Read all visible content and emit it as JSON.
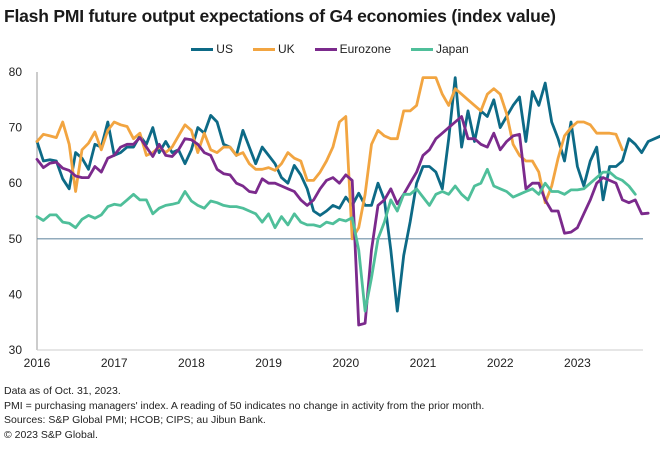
{
  "chart_data": {
    "type": "line",
    "title": "Flash PMI future output expectations of G4 economies (index value)",
    "xlabel": "",
    "ylabel": "",
    "ylim": [
      30,
      80
    ],
    "yticks": [
      "30",
      "40",
      "50",
      "60",
      "70",
      "80"
    ],
    "reference_line": 50,
    "xstart": "2016-01",
    "xticks": [
      "2016",
      "2017",
      "2018",
      "2019",
      "2020",
      "2021",
      "2022",
      "2023"
    ],
    "grid": false,
    "legend_position": "top-center",
    "series": [
      {
        "name": "US",
        "color": "#0d6a86",
        "values": [
          67.5,
          64,
          64.2,
          64,
          60.8,
          59,
          65.5,
          64.5,
          62.5,
          67,
          66.5,
          71,
          65,
          65.5,
          66.5,
          66.5,
          68.5,
          67,
          70,
          65.5,
          67.5,
          65.5,
          66,
          63.5,
          66,
          70,
          69,
          72.2,
          71,
          67,
          66.5,
          65,
          69.5,
          66.5,
          63.5,
          66.5,
          65,
          63.5,
          61,
          60,
          63.2,
          61.5,
          59,
          55,
          54.2,
          55,
          56,
          55.5,
          57.5,
          56,
          58.2,
          56,
          56,
          60,
          57,
          48,
          37,
          47,
          53,
          60,
          63,
          63,
          62,
          59,
          68,
          79,
          66.5,
          73,
          67.5,
          73,
          72,
          75,
          70,
          72,
          74,
          75.5,
          67.5,
          76.5,
          74,
          78,
          71,
          68,
          64,
          71,
          63,
          59.5,
          64,
          66.5,
          57,
          63,
          63,
          64,
          68,
          67,
          65.5,
          67.5,
          68,
          68.5,
          64.5,
          65,
          66,
          66
        ]
      },
      {
        "name": "UK",
        "color": "#f2a541",
        "values": [
          67.5,
          68.8,
          68.5,
          68.2,
          71,
          67,
          58.5,
          66,
          67.2,
          69.2,
          66,
          69.5,
          71,
          70.5,
          70.2,
          68,
          69,
          65,
          65.5,
          66.5,
          65.5,
          66.5,
          68.5,
          70.5,
          69.5,
          65.5,
          69,
          66,
          65.5,
          66.5,
          66.5,
          65,
          65.5,
          63.5,
          62.5,
          62.5,
          62.8,
          62.3,
          63.5,
          65.5,
          64.5,
          64,
          60.5,
          60.5,
          62,
          64,
          66.5,
          71,
          72,
          50,
          52,
          58,
          67,
          69.5,
          68.5,
          68,
          68,
          73,
          73,
          74,
          79,
          79,
          79,
          76,
          74,
          77,
          76,
          75,
          74,
          73,
          76,
          77,
          76,
          72.5,
          67,
          65,
          64,
          64,
          62,
          56.5,
          59.5,
          64.5,
          68.5,
          70,
          71,
          71,
          70.5,
          69,
          69,
          69,
          68.8,
          66
        ]
      },
      {
        "name": "Eurozone",
        "color": "#7b2a8c",
        "values": [
          64.3,
          62.8,
          63.6,
          63.8,
          62.7,
          62.3,
          61.3,
          61.0,
          61.0,
          63.0,
          62.0,
          64.5,
          65,
          66.5,
          67,
          67,
          68.2,
          66.5,
          64.8,
          67,
          65,
          64.8,
          66,
          68,
          67.8,
          67,
          65.5,
          65,
          62.5,
          61.7,
          61.5,
          60,
          59.5,
          58.5,
          58.3,
          60.8,
          60,
          60,
          59.5,
          59,
          58.5,
          57,
          56,
          57,
          59,
          60.5,
          61,
          60,
          61.5,
          60.5,
          34.5,
          34.8,
          48,
          56,
          57,
          59,
          56.3,
          58,
          60,
          62,
          65,
          66,
          68,
          69,
          70,
          71,
          72,
          68,
          68,
          67,
          66.5,
          69,
          66,
          67.5,
          68.5,
          68.8,
          59,
          60,
          60,
          57,
          55,
          55,
          51,
          51.2,
          52,
          54.5,
          57,
          60,
          61,
          60.5,
          60,
          57,
          56.5,
          57,
          54.5,
          54.6
        ]
      },
      {
        "name": "Japan",
        "color": "#4fbf9a",
        "values": [
          54,
          53.3,
          54.3,
          54.3,
          53,
          52.8,
          52,
          53.5,
          54.2,
          53.7,
          54.3,
          55.8,
          56.2,
          56,
          57,
          58,
          57,
          57,
          54.5,
          55.5,
          56,
          56.2,
          56.5,
          58.5,
          56.8,
          56,
          55.5,
          56.8,
          56.5,
          56,
          55.8,
          55.8,
          55.5,
          55,
          54.5,
          53,
          54.5,
          52,
          54,
          52.5,
          54.5,
          53,
          52.5,
          52.5,
          52.2,
          53,
          52.7,
          53.5,
          53.2,
          53.8,
          48,
          37,
          43,
          50,
          53,
          57,
          55,
          58,
          58,
          59,
          57.5,
          56,
          58,
          58.5,
          58,
          59.5,
          58,
          57,
          59.5,
          60,
          62.5,
          59.5,
          59,
          58.5,
          57.5,
          58,
          58.5,
          59,
          58,
          60,
          58.5,
          58.5,
          58,
          58.8,
          58.8,
          59,
          60,
          61,
          62,
          62,
          61,
          60.5,
          59.5,
          58
        ]
      }
    ]
  },
  "legend": [
    "US",
    "UK",
    "Eurozone",
    "Japan"
  ],
  "notes": [
    "Data as of Oct. 31, 2023.",
    "PMI = purchasing managers' index. A reading of 50 indicates no change in activity from the prior month.",
    "Sources: S&P Global PMI; HCOB; CIPS; au Jibun Bank.",
    "© 2023 S&P Global."
  ]
}
